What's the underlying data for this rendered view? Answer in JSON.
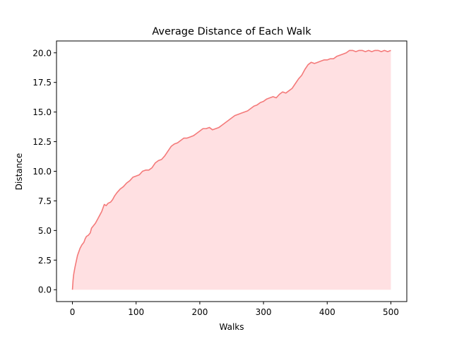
{
  "chart_data": {
    "type": "area",
    "title": "Average Distance of Each Walk",
    "xlabel": "Walks",
    "ylabel": "Distance",
    "xlim": [
      -25,
      525
    ],
    "ylim": [
      -1.0,
      21.0
    ],
    "xticks": [
      0,
      100,
      200,
      300,
      400,
      500
    ],
    "xtick_labels": [
      "0",
      "100",
      "200",
      "300",
      "400",
      "500"
    ],
    "yticks": [
      0.0,
      2.5,
      5.0,
      7.5,
      10.0,
      12.5,
      15.0,
      17.5,
      20.0
    ],
    "ytick_labels": [
      "0.0",
      "2.5",
      "5.0",
      "7.5",
      "10.0",
      "12.5",
      "15.0",
      "17.5",
      "20.0"
    ],
    "grid": false,
    "line_color": "#f47a7a",
    "fill_color": "#ffe0e2",
    "series": [
      {
        "x": [
          0,
          1,
          2,
          4,
          6,
          8,
          10,
          12,
          15,
          18,
          20,
          22,
          25,
          28,
          30,
          33,
          36,
          40,
          43,
          46,
          50,
          53,
          56,
          60,
          63,
          66,
          70,
          75,
          80,
          85,
          90,
          95,
          100,
          105,
          110,
          115,
          120,
          125,
          130,
          135,
          140,
          145,
          150,
          155,
          160,
          165,
          170,
          175,
          180,
          185,
          190,
          195,
          200,
          205,
          210,
          215,
          220,
          225,
          230,
          235,
          240,
          245,
          250,
          255,
          260,
          265,
          270,
          275,
          280,
          285,
          290,
          295,
          300,
          305,
          310,
          315,
          320,
          325,
          330,
          335,
          340,
          345,
          350,
          355,
          360,
          365,
          370,
          375,
          380,
          385,
          390,
          395,
          400,
          405,
          410,
          415,
          420,
          425,
          430,
          435,
          440,
          445,
          450,
          455,
          460,
          465,
          470,
          475,
          480,
          485,
          490,
          495,
          500
        ],
        "y": [
          0.0,
          0.8,
          1.3,
          1.9,
          2.4,
          2.9,
          3.2,
          3.5,
          3.8,
          4.0,
          4.3,
          4.5,
          4.6,
          4.8,
          5.2,
          5.4,
          5.6,
          6.0,
          6.3,
          6.6,
          7.2,
          7.1,
          7.3,
          7.4,
          7.6,
          7.9,
          8.2,
          8.5,
          8.7,
          9.0,
          9.2,
          9.5,
          9.6,
          9.7,
          10.0,
          10.1,
          10.1,
          10.3,
          10.7,
          10.9,
          11.0,
          11.3,
          11.7,
          12.1,
          12.3,
          12.4,
          12.6,
          12.8,
          12.8,
          12.9,
          13.0,
          13.2,
          13.4,
          13.6,
          13.6,
          13.7,
          13.5,
          13.6,
          13.7,
          13.9,
          14.1,
          14.3,
          14.5,
          14.7,
          14.8,
          14.9,
          15.0,
          15.1,
          15.3,
          15.5,
          15.6,
          15.8,
          15.9,
          16.1,
          16.2,
          16.3,
          16.2,
          16.5,
          16.7,
          16.6,
          16.8,
          17.0,
          17.4,
          17.8,
          18.1,
          18.6,
          19.0,
          19.2,
          19.1,
          19.2,
          19.3,
          19.4,
          19.4,
          19.5,
          19.5,
          19.7,
          19.8,
          19.9,
          20.0,
          20.2,
          20.2,
          20.1,
          20.2,
          20.2,
          20.1,
          20.2,
          20.1,
          20.2,
          20.2,
          20.1,
          20.2,
          20.1,
          20.2
        ]
      }
    ]
  }
}
